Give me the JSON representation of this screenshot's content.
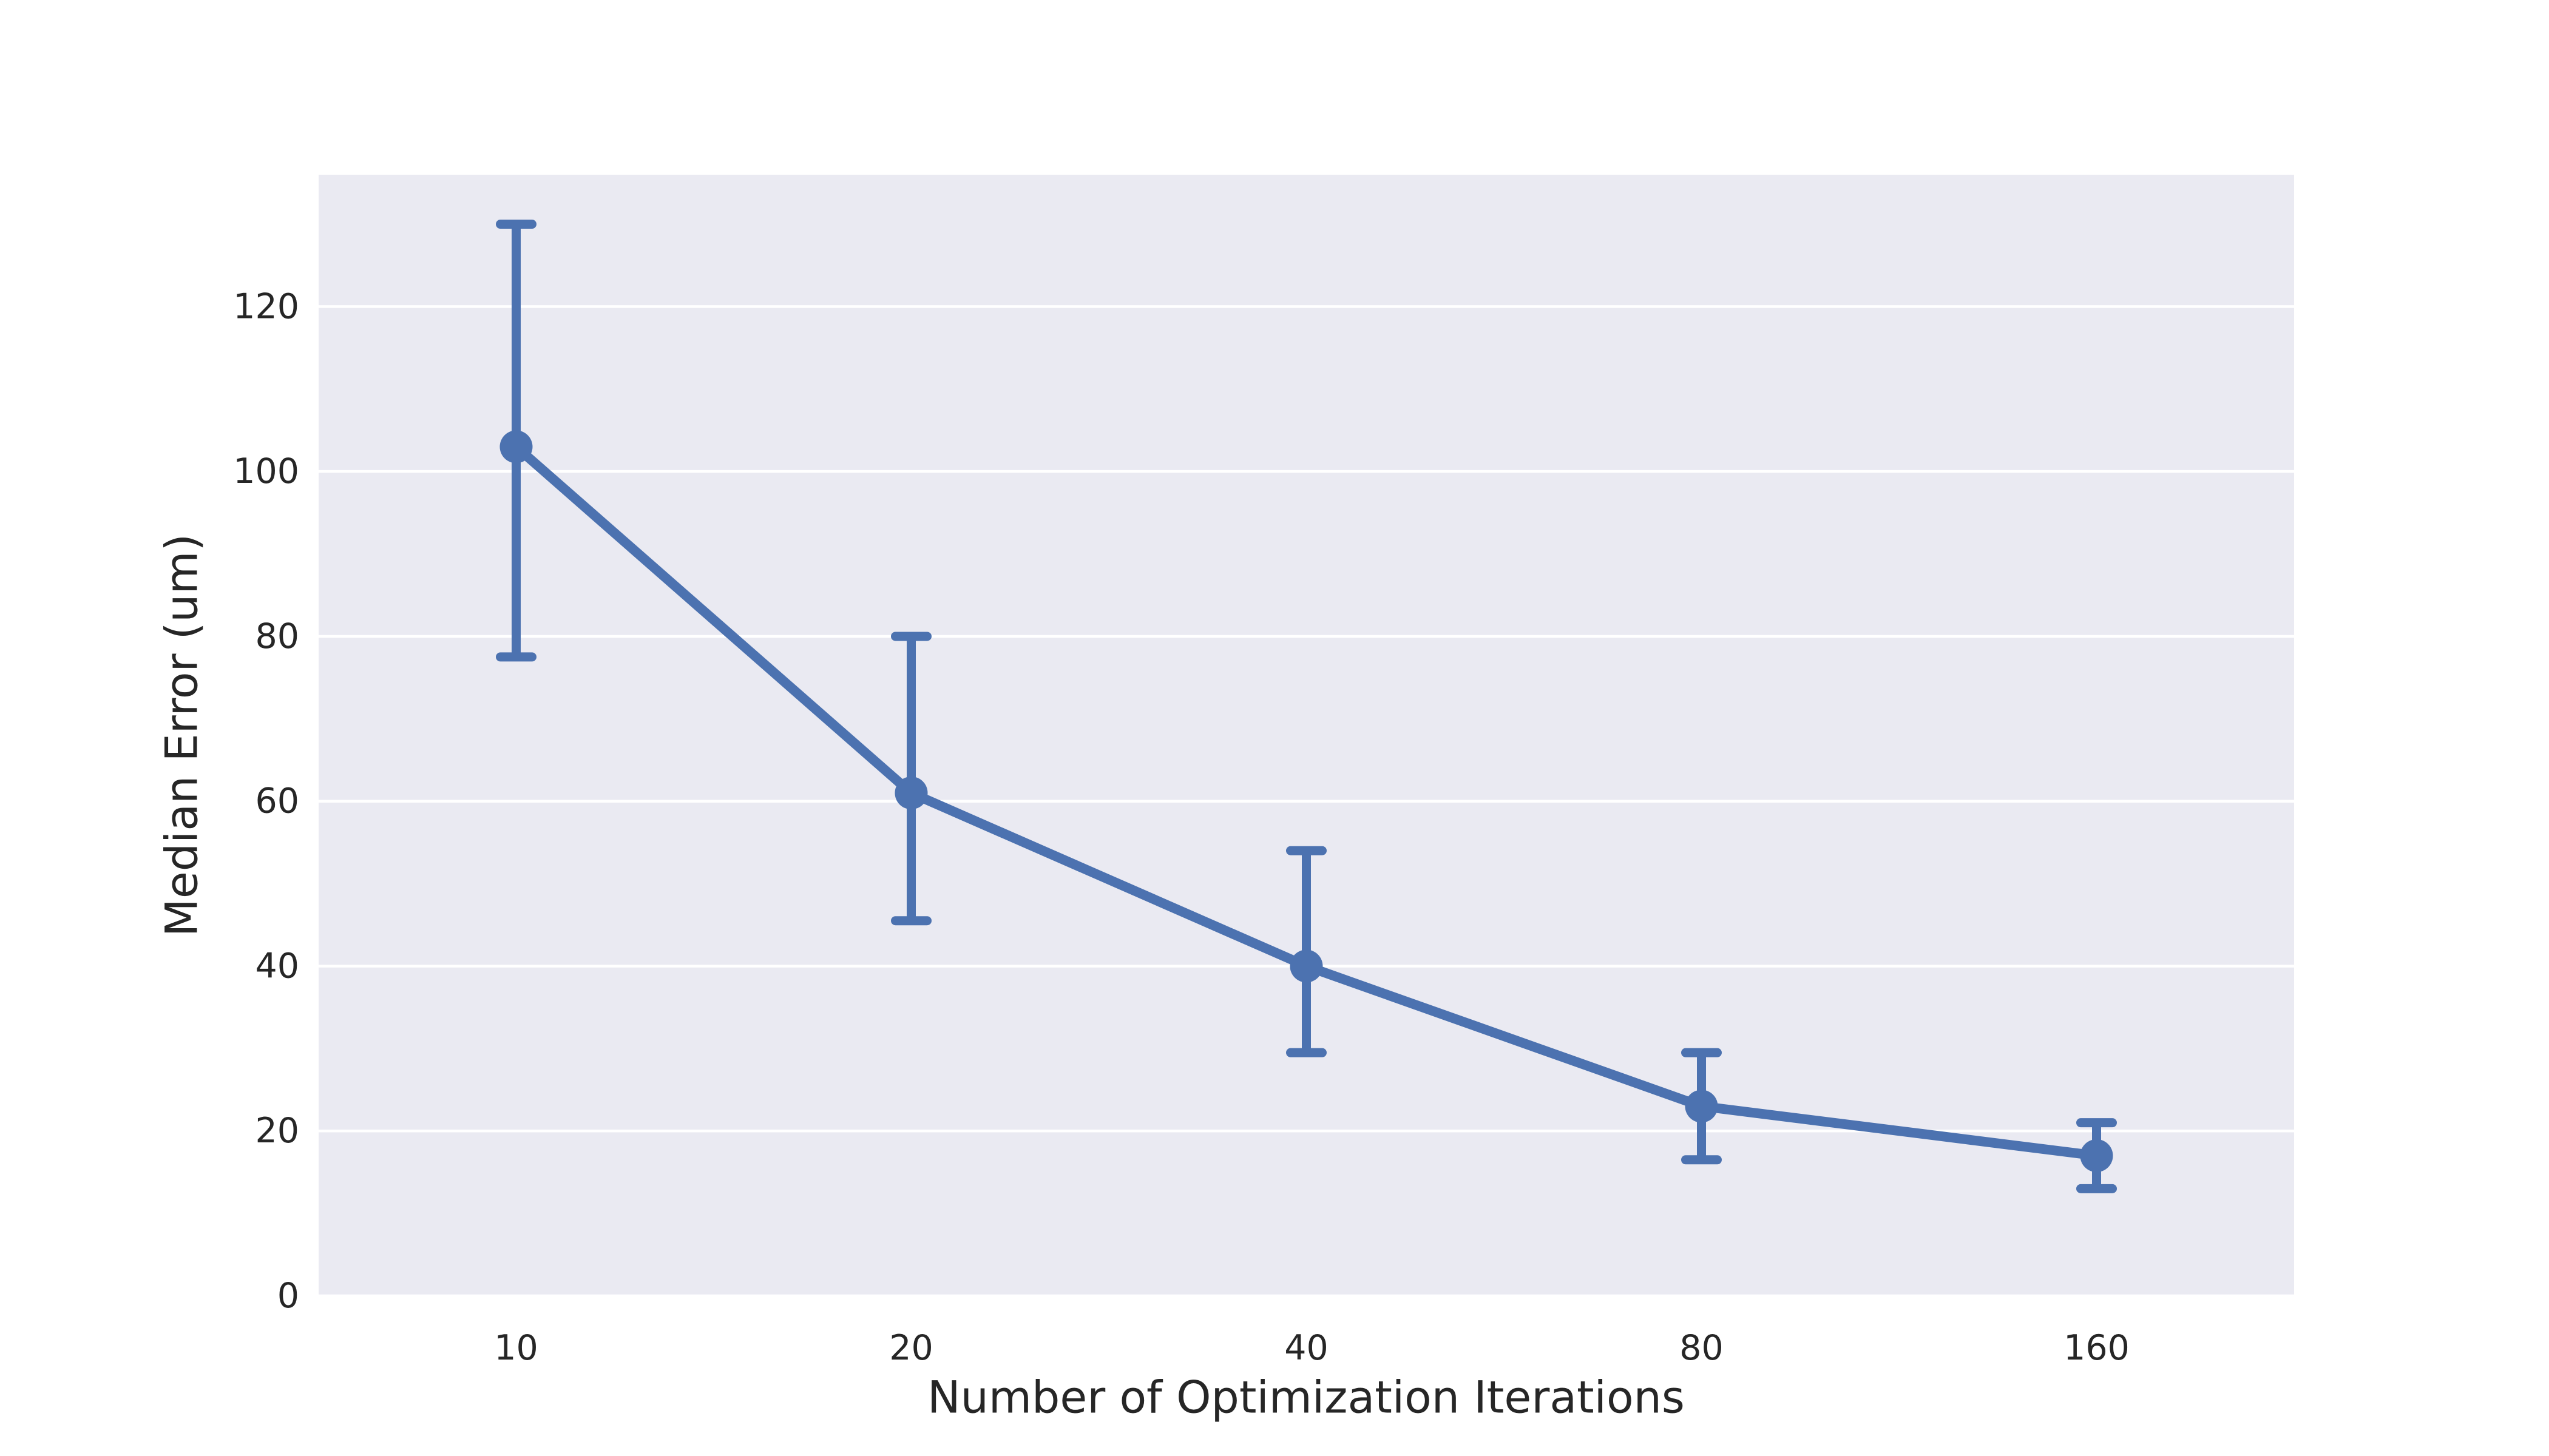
{
  "chart_data": {
    "type": "line",
    "title": "",
    "xlabel": "Number of Optimization Iterations",
    "ylabel": "Median Error (um)",
    "categories": [
      "10",
      "20",
      "40",
      "80",
      "160"
    ],
    "series": [
      {
        "name": "Median Error",
        "values": [
          103,
          61,
          40,
          23,
          17
        ],
        "error_low": [
          77.5,
          45.5,
          29.5,
          16.5,
          13
        ],
        "error_high": [
          130,
          80,
          54,
          29.5,
          21
        ]
      }
    ],
    "yticks": [
      0,
      20,
      40,
      60,
      80,
      100,
      120
    ],
    "ylim": [
      0,
      136
    ],
    "xtick_labels": [
      "10",
      "20",
      "40",
      "80",
      "160"
    ],
    "legend_position": "none",
    "grid": "horizontal",
    "marker": "circle",
    "colors": {
      "line": "#4C72B0",
      "marker": "#4C72B0",
      "error_bar": "#4C72B0",
      "plot_background": "#EAEAF2",
      "gridline": "#FFFFFF",
      "text": "#262626",
      "figure_background": "#FFFFFF"
    }
  }
}
